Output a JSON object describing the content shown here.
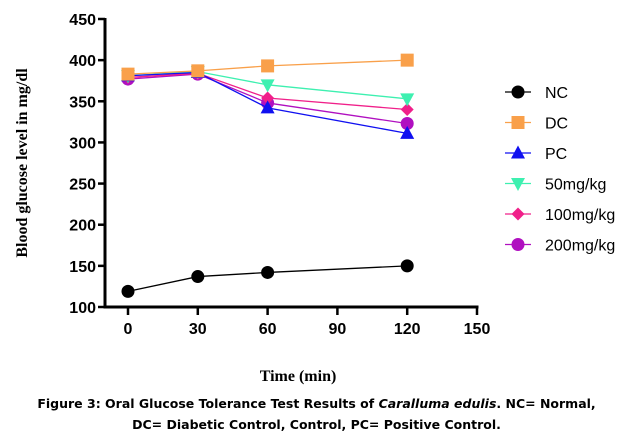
{
  "chart_data": {
    "type": "line",
    "title": "",
    "xlabel": "Time (min)",
    "ylabel": "Blood glucose level in mg/dl",
    "xlim": [
      0,
      150
    ],
    "ylim": [
      100,
      450
    ],
    "xticks": [
      0,
      30,
      60,
      90,
      120,
      150
    ],
    "yticks": [
      100,
      150,
      200,
      250,
      300,
      350,
      400,
      450
    ],
    "grid": false,
    "legend_position": "right",
    "x": [
      0,
      30,
      60,
      120
    ],
    "series": [
      {
        "name": "NC",
        "color": "#000000",
        "marker": "circle",
        "values": [
          119,
          137,
          142,
          150
        ]
      },
      {
        "name": "DC",
        "color": "#f9a04a",
        "marker": "square",
        "values": [
          383,
          387,
          393,
          400
        ]
      },
      {
        "name": "PC",
        "color": "#1010f0",
        "marker": "triangle-up",
        "values": [
          381,
          385,
          342,
          311
        ]
      },
      {
        "name": "50mg/kg",
        "color": "#3ef0b0",
        "marker": "triangle-down",
        "values": [
          381,
          386,
          370,
          353
        ]
      },
      {
        "name": "100mg/kg",
        "color": "#f0208a",
        "marker": "diamond",
        "values": [
          379,
          384,
          354,
          340
        ]
      },
      {
        "name": "200mg/kg",
        "color": "#b010c0",
        "marker": "circle",
        "values": [
          377,
          383,
          348,
          323
        ]
      }
    ]
  },
  "caption": {
    "prefix": "Figure 3: Oral Glucose Tolerance Test Results of ",
    "species": "Caralluma edulis",
    "suffix": ". NC= Normal,",
    "line2": "DC= Diabetic Control, Control, PC= Positive Control."
  }
}
